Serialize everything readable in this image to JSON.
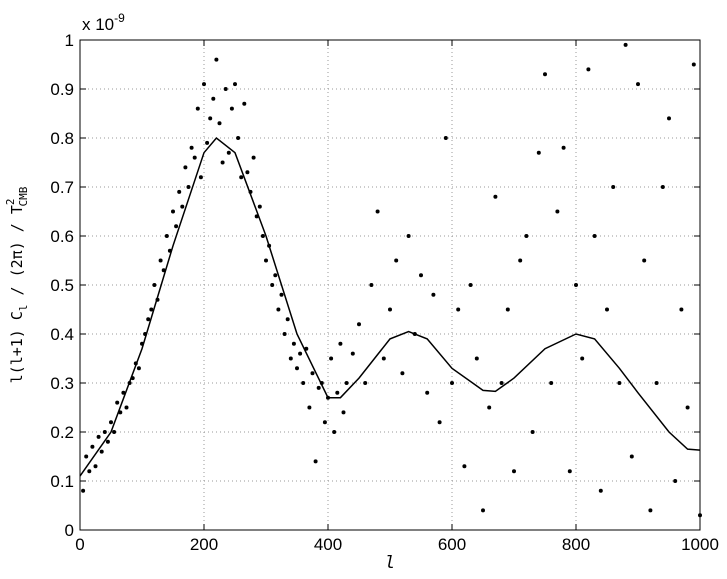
{
  "chart_data": {
    "type": "scatter",
    "xlabel": "l",
    "ylabel": [
      "l(l+1) C",
      "l",
      " / (2π) / T",
      "2",
      "CMB"
    ],
    "exponent_label": {
      "base": "x 10",
      "exponent": "-9"
    },
    "xlim": [
      0,
      1000
    ],
    "ylim": [
      0,
      1
    ],
    "xticks": [
      0,
      200,
      400,
      600,
      800,
      1000
    ],
    "yticks": [
      0,
      0.1,
      0.2,
      0.3,
      0.4,
      0.5,
      0.6,
      0.7,
      0.8,
      0.9,
      1
    ],
    "grid": true,
    "series": [
      {
        "type": "scatter",
        "color": "#000000",
        "x": [
          5,
          10,
          15,
          20,
          25,
          30,
          35,
          40,
          45,
          50,
          55,
          60,
          65,
          70,
          75,
          80,
          85,
          90,
          95,
          100,
          105,
          110,
          115,
          120,
          125,
          130,
          135,
          140,
          145,
          150,
          155,
          160,
          165,
          170,
          175,
          180,
          185,
          190,
          195,
          200,
          205,
          210,
          215,
          220,
          225,
          230,
          235,
          240,
          245,
          250,
          255,
          260,
          265,
          270,
          275,
          280,
          285,
          290,
          295,
          300,
          305,
          310,
          315,
          320,
          325,
          330,
          335,
          340,
          345,
          350,
          355,
          360,
          365,
          370,
          375,
          380,
          385,
          390,
          395,
          400,
          405,
          410,
          415,
          420,
          425,
          430,
          440,
          450,
          460,
          470,
          480,
          490,
          500,
          510,
          520,
          530,
          540,
          550,
          560,
          570,
          580,
          590,
          600,
          610,
          620,
          630,
          640,
          650,
          660,
          670,
          680,
          690,
          700,
          710,
          720,
          730,
          740,
          750,
          760,
          770,
          780,
          790,
          800,
          810,
          820,
          830,
          840,
          850,
          860,
          870,
          880,
          890,
          900,
          910,
          920,
          930,
          940,
          950,
          960,
          970,
          980,
          990,
          1000
        ],
        "y": [
          0.08,
          0.15,
          0.12,
          0.17,
          0.13,
          0.19,
          0.16,
          0.2,
          0.18,
          0.22,
          0.2,
          0.26,
          0.24,
          0.28,
          0.25,
          0.3,
          0.31,
          0.34,
          0.33,
          0.38,
          0.4,
          0.43,
          0.45,
          0.5,
          0.47,
          0.55,
          0.53,
          0.6,
          0.57,
          0.65,
          0.62,
          0.69,
          0.66,
          0.74,
          0.7,
          0.78,
          0.76,
          0.86,
          0.72,
          0.91,
          0.79,
          0.84,
          0.88,
          0.96,
          0.83,
          0.75,
          0.9,
          0.77,
          0.86,
          0.91,
          0.8,
          0.72,
          0.87,
          0.73,
          0.69,
          0.76,
          0.64,
          0.66,
          0.6,
          0.55,
          0.58,
          0.5,
          0.52,
          0.45,
          0.48,
          0.4,
          0.43,
          0.35,
          0.38,
          0.33,
          0.36,
          0.3,
          0.37,
          0.25,
          0.32,
          0.14,
          0.29,
          0.3,
          0.22,
          0.27,
          0.35,
          0.2,
          0.28,
          0.38,
          0.24,
          0.3,
          0.36,
          0.42,
          0.3,
          0.5,
          0.65,
          0.35,
          0.45,
          0.55,
          0.32,
          0.6,
          0.4,
          0.52,
          0.28,
          0.48,
          0.22,
          0.8,
          0.3,
          0.45,
          0.13,
          0.5,
          0.35,
          0.04,
          0.25,
          0.68,
          0.3,
          0.45,
          0.12,
          0.55,
          0.6,
          0.2,
          0.77,
          0.93,
          0.3,
          0.65,
          0.78,
          0.12,
          0.5,
          0.35,
          0.94,
          0.6,
          0.08,
          0.45,
          0.7,
          0.3,
          0.99,
          0.15,
          0.91,
          0.55,
          0.04,
          0.3,
          0.7,
          0.84,
          0.1,
          0.45,
          0.25,
          0.95,
          0.03
        ]
      },
      {
        "type": "line",
        "color": "#000000",
        "x": [
          0,
          50,
          100,
          150,
          200,
          220,
          250,
          300,
          350,
          400,
          420,
          450,
          500,
          530,
          560,
          600,
          650,
          670,
          700,
          750,
          800,
          830,
          870,
          900,
          950,
          980,
          1000
        ],
        "y": [
          0.11,
          0.2,
          0.37,
          0.58,
          0.77,
          0.8,
          0.77,
          0.6,
          0.4,
          0.27,
          0.27,
          0.31,
          0.39,
          0.405,
          0.39,
          0.33,
          0.285,
          0.283,
          0.31,
          0.37,
          0.4,
          0.39,
          0.33,
          0.28,
          0.2,
          0.165,
          0.163
        ]
      }
    ]
  }
}
